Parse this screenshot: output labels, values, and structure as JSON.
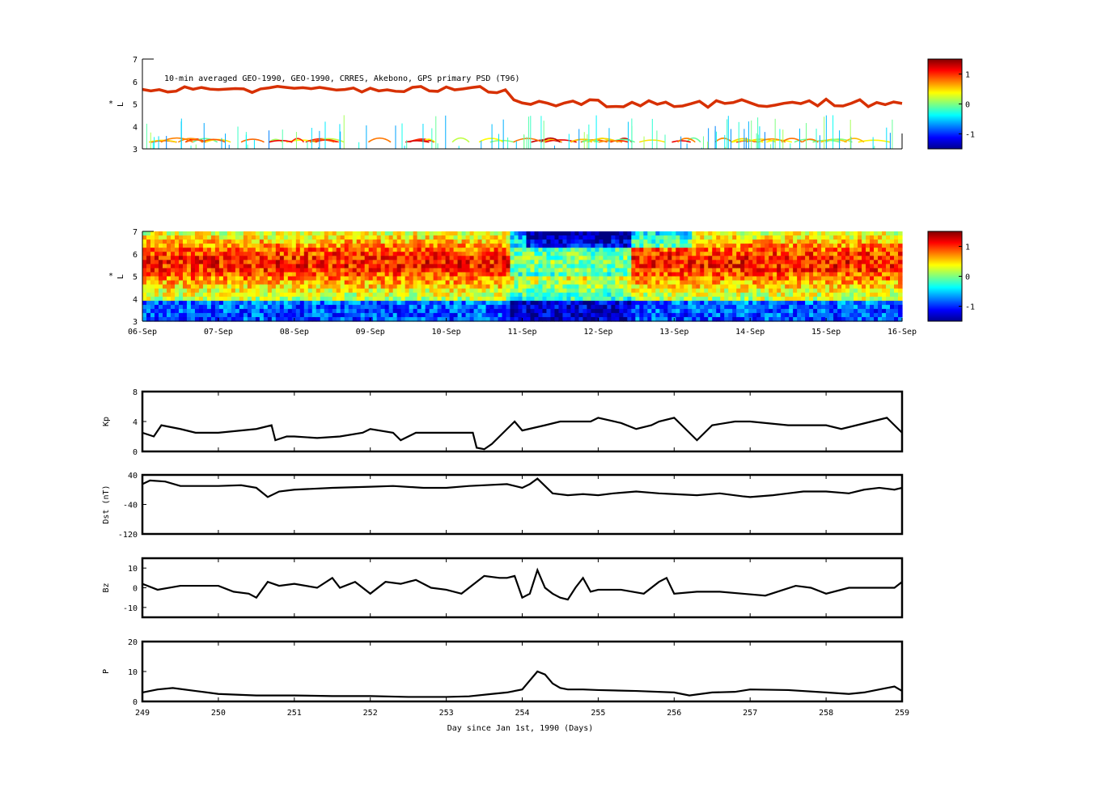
{
  "figure": {
    "title": "10-min averaged GEO-1990, GEO-1990, CRRES, Akebono, GPS  primary PSD (T96)",
    "xlabel": "Day since Jan 1st, 1990 (Days)"
  },
  "chart_data": [
    {
      "type": "heatmap",
      "name": "psd-observations",
      "ylabel": "L*",
      "ylim": [
        3,
        7
      ],
      "yticks": [
        "3",
        "4",
        "5",
        "6",
        "7"
      ],
      "colorbar": {
        "ticks": [
          "1",
          "0",
          "-1"
        ],
        "range": [
          -1.5,
          1.5
        ]
      },
      "grid": false
    },
    {
      "type": "heatmap",
      "name": "psd-reanalysis",
      "ylabel": "L*",
      "ylim": [
        3,
        7
      ],
      "yticks": [
        "3",
        "4",
        "5",
        "6",
        "7"
      ],
      "xtick_labels": [
        "06-Sep",
        "07-Sep",
        "08-Sep",
        "09-Sep",
        "10-Sep",
        "11-Sep",
        "12-Sep",
        "13-Sep",
        "14-Sep",
        "15-Sep",
        "16-Sep"
      ],
      "colorbar": {
        "ticks": [
          "1",
          "0",
          "-1"
        ],
        "range": [
          -1.5,
          1.5
        ]
      },
      "grid": false
    },
    {
      "type": "line",
      "name": "kp",
      "ylabel": "Kp",
      "ylim": [
        0,
        8
      ],
      "yticks": [
        "0",
        "4",
        "8"
      ],
      "x": [
        249,
        249.15,
        249.25,
        249.5,
        249.7,
        250.0,
        250.5,
        250.7,
        250.75,
        250.9,
        251.0,
        251.3,
        251.6,
        251.9,
        252.0,
        252.3,
        252.4,
        252.6,
        252.7,
        253.0,
        253.35,
        253.4,
        253.5,
        253.6,
        253.8,
        253.9,
        254.0,
        254.3,
        254.5,
        254.8,
        254.9,
        255.0,
        255.3,
        255.5,
        255.7,
        255.8,
        256.0,
        256.2,
        256.3,
        256.5,
        256.8,
        257.0,
        257.5,
        258.0,
        258.2,
        258.4,
        258.6,
        258.8,
        258.9,
        259
      ],
      "values": [
        2.5,
        2.0,
        3.5,
        3.0,
        2.5,
        2.5,
        3.0,
        3.5,
        1.5,
        2.0,
        2.0,
        1.8,
        2.0,
        2.5,
        3.0,
        2.5,
        1.5,
        2.5,
        2.5,
        2.5,
        2.5,
        0.5,
        0.3,
        1.0,
        3.0,
        4.0,
        2.8,
        3.5,
        4.0,
        4.0,
        4.0,
        4.5,
        3.8,
        3.0,
        3.5,
        4.0,
        4.5,
        2.5,
        1.5,
        3.5,
        4.0,
        4.0,
        3.5,
        3.5,
        3.0,
        3.5,
        4.0,
        4.5,
        3.5,
        2.5
      ]
    },
    {
      "type": "line",
      "name": "dst",
      "ylabel": "Dst (nT)",
      "ylim": [
        -120,
        40
      ],
      "yticks": [
        "-120",
        "-40",
        "40"
      ],
      "x": [
        249,
        249.1,
        249.3,
        249.5,
        250.0,
        250.3,
        250.5,
        250.65,
        250.8,
        251.0,
        251.5,
        252.0,
        252.3,
        252.7,
        253.0,
        253.3,
        253.8,
        254.0,
        254.1,
        254.2,
        254.3,
        254.4,
        254.6,
        254.8,
        255.0,
        255.2,
        255.5,
        255.8,
        256.0,
        256.3,
        256.6,
        256.9,
        257.0,
        257.3,
        257.5,
        257.7,
        258.0,
        258.3,
        258.5,
        258.7,
        258.9,
        259
      ],
      "values": [
        15,
        25,
        22,
        10,
        10,
        12,
        5,
        -20,
        -5,
        0,
        5,
        8,
        10,
        5,
        5,
        10,
        15,
        5,
        15,
        30,
        10,
        -10,
        -15,
        -12,
        -15,
        -10,
        -5,
        -10,
        -12,
        -15,
        -10,
        -18,
        -20,
        -15,
        -10,
        -5,
        -5,
        -10,
        0,
        5,
        0,
        5
      ]
    },
    {
      "type": "line",
      "name": "bz",
      "ylabel": "Bz",
      "ylim": [
        -15,
        15
      ],
      "yticks": [
        "-10",
        "0",
        "10"
      ],
      "x": [
        249,
        249.2,
        249.5,
        250.0,
        250.2,
        250.4,
        250.5,
        250.65,
        250.8,
        251.0,
        251.3,
        251.5,
        251.6,
        251.8,
        252.0,
        252.2,
        252.4,
        252.6,
        252.8,
        253.0,
        253.2,
        253.3,
        253.5,
        253.7,
        253.8,
        253.9,
        254.0,
        254.1,
        254.2,
        254.3,
        254.4,
        254.5,
        254.6,
        254.7,
        254.8,
        254.9,
        255.0,
        255.3,
        255.6,
        255.8,
        255.9,
        256.0,
        256.3,
        256.6,
        256.9,
        257.2,
        257.6,
        257.8,
        258.0,
        258.3,
        258.6,
        258.9,
        259
      ],
      "values": [
        2,
        -1,
        1,
        1,
        -2,
        -3,
        -5,
        3,
        1,
        2,
        0,
        5,
        0,
        3,
        -3,
        3,
        2,
        4,
        0,
        -1,
        -3,
        0,
        6,
        5,
        5,
        6,
        -5,
        -3,
        9,
        0,
        -3,
        -5,
        -6,
        0,
        5,
        -2,
        -1,
        -1,
        -3,
        3,
        5,
        -3,
        -2,
        -2,
        -3,
        -4,
        1,
        0,
        -3,
        0,
        0,
        0,
        3
      ]
    },
    {
      "type": "line",
      "name": "pressure",
      "ylabel": "P",
      "ylim": [
        0,
        20
      ],
      "yticks": [
        "0",
        "10",
        "20"
      ],
      "x": [
        249,
        249.2,
        249.4,
        249.7,
        250.0,
        250.5,
        251.0,
        251.5,
        252.0,
        252.5,
        253.0,
        253.3,
        253.6,
        253.8,
        254.0,
        254.1,
        254.2,
        254.3,
        254.4,
        254.5,
        254.6,
        254.8,
        255.0,
        255.5,
        256.0,
        256.2,
        256.5,
        256.8,
        257.0,
        257.5,
        258.0,
        258.3,
        258.5,
        258.7,
        258.9,
        259
      ],
      "values": [
        3,
        4,
        4.5,
        3.5,
        2.5,
        2,
        2,
        1.8,
        1.8,
        1.5,
        1.5,
        1.7,
        2.5,
        3,
        4,
        7,
        10,
        9,
        6,
        4.5,
        4,
        4,
        3.8,
        3.5,
        3,
        2,
        3,
        3.2,
        4,
        3.8,
        3,
        2.5,
        3,
        4,
        5,
        3.5
      ]
    }
  ],
  "xaxis": {
    "ticks": [
      "249",
      "250",
      "251",
      "252",
      "253",
      "254",
      "255",
      "256",
      "257",
      "258",
      "259"
    ]
  }
}
